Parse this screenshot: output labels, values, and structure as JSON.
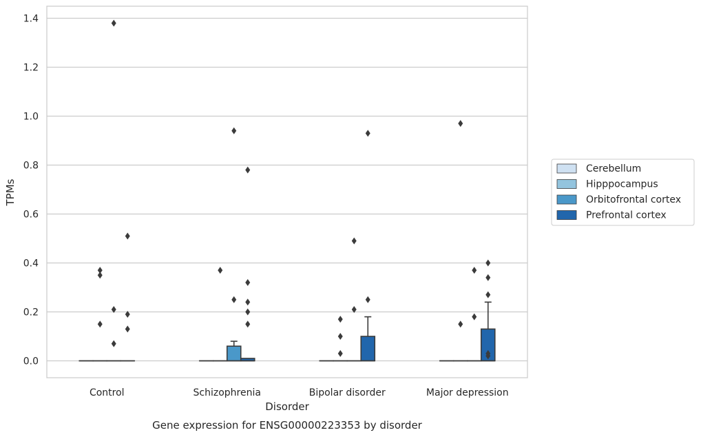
{
  "chart_data": {
    "type": "box",
    "caption": "Gene expression for ENSG00000223353 by disorder",
    "xlabel": "Disorder",
    "ylabel": "TPMs",
    "ylim": [
      -0.068,
      1.45
    ],
    "yticks": [
      "0.0",
      "0.2",
      "0.4",
      "0.6",
      "0.8",
      "1.0",
      "1.2",
      "1.4"
    ],
    "categories": [
      "Control",
      "Schizophrenia",
      "Bipolar disorder",
      "Major depression"
    ],
    "grid": true,
    "legend_position": "right",
    "series": [
      {
        "name": "Cerebellum",
        "color": "#cfe1f2",
        "boxes": [
          {
            "q1": 0,
            "median": 0,
            "q3": 0,
            "whisker_low": 0,
            "whisker_high": 0,
            "outliers": []
          },
          {
            "q1": 0,
            "median": 0,
            "q3": 0,
            "whisker_low": 0,
            "whisker_high": 0,
            "outliers": []
          },
          {
            "q1": 0,
            "median": 0,
            "q3": 0,
            "whisker_low": 0,
            "whisker_high": 0,
            "outliers": []
          },
          {
            "q1": 0,
            "median": 0,
            "q3": 0,
            "whisker_low": 0,
            "whisker_high": 0,
            "outliers": []
          }
        ]
      },
      {
        "name": "Hipppocampus",
        "color": "#93c4de",
        "boxes": [
          {
            "q1": 0,
            "median": 0,
            "q3": 0,
            "whisker_low": 0,
            "whisker_high": 0,
            "outliers": [
              0.37,
              0.35,
              0.15
            ]
          },
          {
            "q1": 0,
            "median": 0,
            "q3": 0,
            "whisker_low": 0,
            "whisker_high": 0,
            "outliers": [
              0.37
            ]
          },
          {
            "q1": 0,
            "median": 0,
            "q3": 0,
            "whisker_low": 0,
            "whisker_high": 0,
            "outliers": [
              0.17,
              0.1,
              0.03
            ]
          },
          {
            "q1": 0,
            "median": 0,
            "q3": 0,
            "whisker_low": 0,
            "whisker_high": 0,
            "outliers": [
              0.97,
              0.15
            ]
          }
        ]
      },
      {
        "name": "Orbitofrontal cortex",
        "color": "#4a98c9",
        "boxes": [
          {
            "q1": 0,
            "median": 0,
            "q3": 0,
            "whisker_low": 0,
            "whisker_high": 0,
            "outliers": [
              1.38,
              0.21,
              0.07
            ]
          },
          {
            "q1": 0,
            "median": 0,
            "q3": 0.06,
            "whisker_low": 0,
            "whisker_high": 0.08,
            "outliers": [
              0.94,
              0.25
            ]
          },
          {
            "q1": 0,
            "median": 0,
            "q3": 0,
            "whisker_low": 0,
            "whisker_high": 0,
            "outliers": [
              0.49,
              0.21
            ]
          },
          {
            "q1": 0,
            "median": 0,
            "q3": 0,
            "whisker_low": 0,
            "whisker_high": 0,
            "outliers": [
              0.37,
              0.18
            ]
          }
        ]
      },
      {
        "name": "Prefrontal cortex",
        "color": "#2166ac",
        "boxes": [
          {
            "q1": 0,
            "median": 0,
            "q3": 0,
            "whisker_low": 0,
            "whisker_high": 0,
            "outliers": [
              0.51,
              0.19,
              0.13
            ]
          },
          {
            "q1": 0,
            "median": 0,
            "q3": 0.01,
            "whisker_low": 0,
            "whisker_high": 0.01,
            "outliers": [
              0.78,
              0.32,
              0.24,
              0.2,
              0.15
            ]
          },
          {
            "q1": 0,
            "median": 0,
            "q3": 0.1,
            "whisker_low": 0,
            "whisker_high": 0.18,
            "outliers": [
              0.93,
              0.25
            ]
          },
          {
            "q1": 0,
            "median": 0,
            "q3": 0.13,
            "whisker_low": 0,
            "whisker_high": 0.24,
            "outliers": [
              0.4,
              0.34,
              0.27,
              0.03,
              0.02
            ]
          }
        ]
      }
    ]
  }
}
